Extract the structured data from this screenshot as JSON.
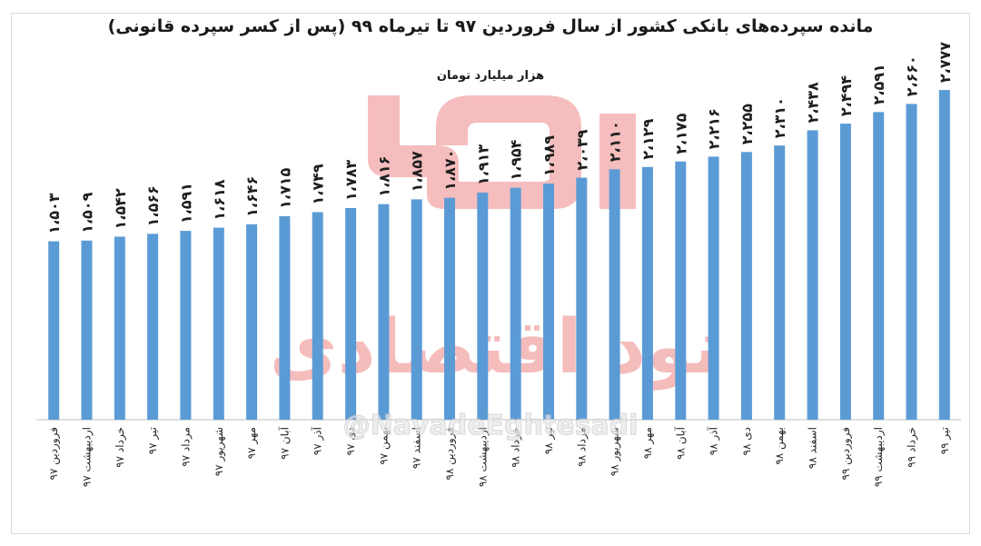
{
  "title": "مانده سپرده‌های بانکی کشور از سال فروردین ۹۷ تا تیرماه ۹۹ (پس از کسر سپرده قانونی)",
  "subtitle": "هزار میلیارد تومان",
  "watermark": {
    "brand": "نود اقتصادی",
    "handle": "@NavadeEghtesadi",
    "color": "#f08c8c"
  },
  "colors": {
    "bar": "#5b9bd5",
    "axis": "#bfbfbf"
  },
  "chart_data": {
    "type": "bar",
    "title": "مانده سپرده‌های بانکی کشور از سال فروردین ۹۷ تا تیرماه ۹۹ (پس از کسر سپرده قانونی)",
    "subtitle": "هزار میلیارد تومان",
    "categories": [
      "فروردین ۹۷",
      "اردیبهشت ۹۷",
      "خرداد ۹۷",
      "تیر ۹۷",
      "مرداد ۹۷",
      "شهریور ۹۷",
      "مهر ۹۷",
      "آبان ۹۷",
      "آذر ۹۷",
      "دی ۹۷",
      "بهمن ۹۷",
      "اسفند ۹۷",
      "فروردین ۹۸",
      "اردیبهشت ۹۸",
      "خرداد ۹۸",
      "تیر ۹۸",
      "مرداد ۹۸",
      "شهریور ۹۸",
      "مهر ۹۸",
      "آبان ۹۸",
      "آذر ۹۸",
      "دی ۹۸",
      "بهمن ۹۸",
      "اسفند ۹۸",
      "فروردین ۹۹",
      "اردیبهشت ۹۹",
      "خرداد ۹۹",
      "تیر ۹۹"
    ],
    "values": [
      1503,
      1509,
      1542,
      1566,
      1591,
      1618,
      1646,
      1715,
      1749,
      1783,
      1816,
      1857,
      1870,
      1913,
      1954,
      1989,
      2039,
      2110,
      2129,
      2175,
      2216,
      2255,
      2310,
      2438,
      2494,
      2591,
      2660,
      2777
    ],
    "value_labels": [
      "۱،۵۰۳",
      "۱،۵۰۹",
      "۱،۵۴۲",
      "۱،۵۶۶",
      "۱،۵۹۱",
      "۱،۶۱۸",
      "۱،۶۴۶",
      "۱،۷۱۵",
      "۱،۷۴۹",
      "۱،۷۸۳",
      "۱،۸۱۶",
      "۱،۸۵۷",
      "۱،۸۷۰",
      "۱،۹۱۳",
      "۱،۹۵۴",
      "۱،۹۸۹",
      "۲،۰۳۹",
      "۲،۱۱۰",
      "۲،۱۲۹",
      "۲،۱۷۵",
      "۲،۲۱۶",
      "۲،۲۵۵",
      "۲،۳۱۰",
      "۲،۴۳۸",
      "۲،۴۹۴",
      "۲،۵۹۱",
      "۲،۶۶۰",
      "۲،۷۷۷"
    ],
    "ylim": [
      0,
      3000
    ],
    "grid": false,
    "legend": "none"
  }
}
